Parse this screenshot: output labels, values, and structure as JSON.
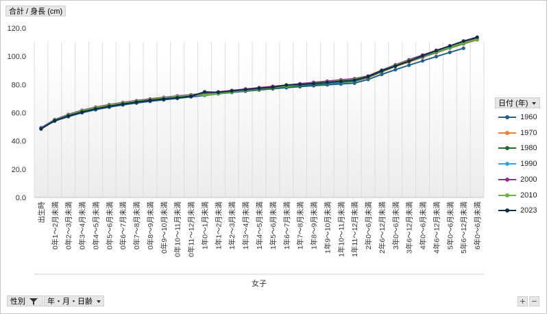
{
  "field_buttons": {
    "value_field": "合計 / 身長 (cm)",
    "legend_field": "日付 (年)",
    "filter_field_1": "性別",
    "filter_field_2": "年・月・日齢"
  },
  "icons": {
    "dropdown": "chevron-down-icon",
    "filter": "filter-funnel-icon",
    "zoom_in": "plus-icon",
    "zoom_out": "minus-icon"
  },
  "zoom": {
    "in_label": "+",
    "out_label": "−"
  },
  "chart_data": {
    "type": "line",
    "title": "",
    "xlabel": "女子",
    "ylabel": "",
    "ylim": [
      0,
      120
    ],
    "yticks": [
      "0.0",
      "20.0",
      "40.0",
      "60.0",
      "80.0",
      "100.0",
      "120.0"
    ],
    "grid": "vertical",
    "legend_position": "right",
    "categories": [
      "出生時",
      "0年1～2月未満",
      "0年2～3月未満",
      "0年3～4月未満",
      "0年4～5月未満",
      "0年5～6月未満",
      "0年6～7月未満",
      "0年7～8月未満",
      "0年8～9月未満",
      "0年9～10月未満",
      "0年10～11月未満",
      "0年11～12月未満",
      "1年0～1月未満",
      "1年1～2月未満",
      "1年2～3月未満",
      "1年3～4月未満",
      "1年4～5月未満",
      "1年5～6月未満",
      "1年6～7月未満",
      "1年7～8月未満",
      "1年8～9月未満",
      "1年9～10月未満",
      "1年10～11月未満",
      "1年11～12月未満",
      "2年0～6月未満",
      "2年6～12月未満",
      "3年0～6月未満",
      "3年6～12月未満",
      "4年0～6月未満",
      "4年6～12月未満",
      "5年0～6月未満",
      "5年6～12月未満",
      "6年0～6月未満"
    ],
    "series": [
      {
        "name": "1960",
        "color": "#1f5f8b",
        "values": [
          49.1,
          54.1,
          57.3,
          60.0,
          62.2,
          64.0,
          65.6,
          66.9,
          68.1,
          69.2,
          70.2,
          71.3,
          72.3,
          73.4,
          74.4,
          75.3,
          76.2,
          77.0,
          77.8,
          78.5,
          79.2,
          79.8,
          80.4,
          81.0,
          83.6,
          87.2,
          90.5,
          93.7,
          96.8,
          99.8,
          102.8,
          105.7,
          null
        ]
      },
      {
        "name": "1970",
        "color": "#ed7d31",
        "values": [
          49.5,
          55.0,
          58.5,
          61.2,
          63.5,
          65.2,
          66.8,
          68.0,
          69.2,
          70.2,
          71.1,
          72.0,
          73.0,
          74.0,
          75.0,
          76.0,
          76.8,
          77.6,
          78.5,
          79.3,
          80.0,
          80.8,
          81.5,
          82.3,
          85.0,
          89.0,
          92.8,
          96.0,
          99.3,
          102.5,
          105.8,
          108.8,
          111.7
        ]
      },
      {
        "name": "1980",
        "color": "#1e6b2a",
        "values": [
          49.3,
          54.8,
          58.3,
          61.0,
          63.3,
          65.0,
          66.6,
          67.8,
          69.0,
          70.0,
          71.0,
          72.0,
          73.0,
          74.0,
          75.0,
          75.9,
          76.8,
          77.6,
          78.4,
          79.2,
          80.0,
          80.8,
          81.5,
          82.3,
          85.1,
          89.2,
          93.0,
          96.4,
          99.7,
          102.9,
          106.1,
          109.1,
          112.0
        ]
      },
      {
        "name": "1990",
        "color": "#2ea6d8",
        "values": [
          49.4,
          55.2,
          58.7,
          61.4,
          63.6,
          65.3,
          66.9,
          68.2,
          69.4,
          70.5,
          71.5,
          72.5,
          73.5,
          74.5,
          75.5,
          76.4,
          77.3,
          78.1,
          78.9,
          79.7,
          80.5,
          81.2,
          82.0,
          82.8,
          85.6,
          89.7,
          93.4,
          96.7,
          100.0,
          103.2,
          106.4,
          109.4,
          112.2
        ]
      },
      {
        "name": "2000",
        "color": "#8e2f8e",
        "values": [
          49.0,
          55.0,
          58.8,
          61.8,
          64.0,
          65.8,
          67.3,
          68.6,
          69.8,
          70.9,
          71.9,
          72.8,
          73.8,
          74.8,
          75.8,
          76.8,
          77.8,
          78.7,
          79.6,
          80.6,
          81.5,
          82.4,
          83.3,
          84.2,
          86.1,
          90.2,
          94.0,
          97.6,
          100.9,
          104.2,
          107.3,
          110.2,
          112.8
        ]
      },
      {
        "name": "2010",
        "color": "#6db33f",
        "values": [
          48.5,
          54.7,
          58.4,
          61.4,
          63.6,
          65.4,
          66.9,
          68.2,
          69.4,
          70.5,
          71.5,
          72.4,
          72.6,
          73.6,
          74.8,
          75.9,
          76.9,
          77.9,
          78.9,
          79.9,
          80.9,
          81.8,
          82.7,
          83.6,
          85.5,
          89.8,
          93.6,
          97.0,
          100.3,
          103.4,
          106.6,
          109.5,
          112.1
        ]
      },
      {
        "name": "2023",
        "color": "#0d2c46",
        "values": [
          48.6,
          54.4,
          57.8,
          60.6,
          62.8,
          64.6,
          66.2,
          67.6,
          68.8,
          69.8,
          70.7,
          71.7,
          74.8,
          74.5,
          75.5,
          76.4,
          77.3,
          78.1,
          79.7,
          80.0,
          80.7,
          81.5,
          82.3,
          83.1,
          85.6,
          89.8,
          93.2,
          96.6,
          100.4,
          104.0,
          107.4,
          110.8,
          113.6
        ]
      }
    ]
  }
}
